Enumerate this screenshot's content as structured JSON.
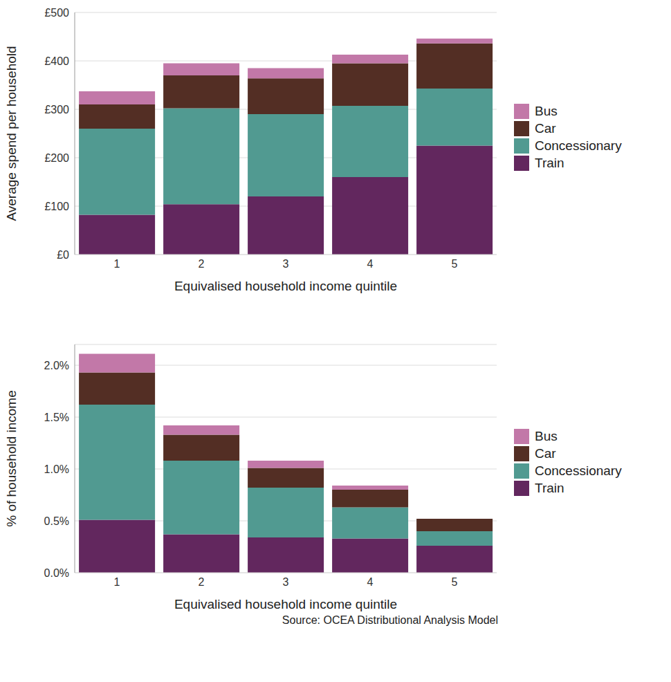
{
  "chart_data": [
    {
      "type": "bar",
      "stacked": true,
      "grid": true,
      "legend": "right",
      "x_label": "Equivalised household income quintile",
      "y_label": "Average spend per household",
      "categories": [
        "1",
        "2",
        "3",
        "4",
        "5"
      ],
      "series": [
        {
          "name": "Train",
          "color": "#62275e",
          "values": [
            82,
            104,
            120,
            160,
            225
          ]
        },
        {
          "name": "Concessionary",
          "color": "#519a91",
          "values": [
            178,
            198,
            170,
            147,
            118
          ]
        },
        {
          "name": "Car",
          "color": "#532e24",
          "values": [
            50,
            68,
            74,
            88,
            93
          ]
        },
        {
          "name": "Bus",
          "color": "#c278a8",
          "values": [
            27,
            25,
            21,
            18,
            10
          ]
        }
      ],
      "ylim": [
        0,
        500
      ],
      "yticks": [
        {
          "value": 0,
          "label": "£0"
        },
        {
          "value": 100,
          "label": "£100"
        },
        {
          "value": 200,
          "label": "£200"
        },
        {
          "value": 300,
          "label": "£300"
        },
        {
          "value": 400,
          "label": "£400"
        },
        {
          "value": 500,
          "label": "£500"
        }
      ]
    },
    {
      "type": "bar",
      "stacked": true,
      "grid": true,
      "legend": "right",
      "x_label": "Equivalised household income quintile",
      "y_label": "% of household income",
      "annotation": "Source: OCEA Distributional Analysis Model",
      "categories": [
        "1",
        "2",
        "3",
        "4",
        "5"
      ],
      "series": [
        {
          "name": "Train",
          "color": "#62275e",
          "values": [
            0.51,
            0.37,
            0.34,
            0.33,
            0.26
          ]
        },
        {
          "name": "Concessionary",
          "color": "#519a91",
          "values": [
            1.11,
            0.71,
            0.48,
            0.3,
            0.14
          ]
        },
        {
          "name": "Car",
          "color": "#532e24",
          "values": [
            0.31,
            0.25,
            0.19,
            0.17,
            0.12
          ]
        },
        {
          "name": "Bus",
          "color": "#c278a8",
          "values": [
            0.18,
            0.09,
            0.07,
            0.04,
            0
          ]
        }
      ],
      "ylim": [
        0,
        2.2
      ],
      "yticks": [
        {
          "value": 0,
          "label": "0.0%"
        },
        {
          "value": 0.5,
          "label": "0.5%"
        },
        {
          "value": 1,
          "label": "1.0%"
        },
        {
          "value": 1.5,
          "label": "1.5%"
        },
        {
          "value": 2,
          "label": "2.0%"
        }
      ]
    }
  ]
}
